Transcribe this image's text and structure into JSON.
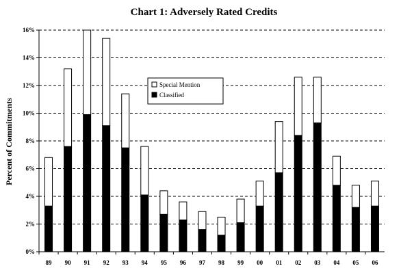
{
  "chart_data": {
    "type": "bar",
    "stacked": true,
    "title": "Chart 1: Adversely Rated Credits",
    "xlabel": "",
    "ylabel": "Percent of Commitments",
    "categories": [
      "89",
      "90",
      "91",
      "92",
      "93",
      "94",
      "95",
      "96",
      "97",
      "98",
      "99",
      "00",
      "01",
      "02",
      "03",
      "04",
      "05",
      "06"
    ],
    "series": [
      {
        "name": "Classified",
        "color": "#000000",
        "values": [
          3.3,
          7.6,
          9.9,
          9.1,
          7.5,
          4.1,
          2.7,
          2.3,
          1.6,
          1.2,
          2.1,
          3.3,
          5.7,
          8.4,
          9.3,
          4.8,
          3.2,
          3.3
        ]
      },
      {
        "name": "Special Mention",
        "color": "#ffffff",
        "values": [
          3.5,
          5.6,
          6.1,
          6.3,
          3.9,
          3.5,
          1.7,
          1.3,
          1.3,
          1.3,
          1.7,
          1.8,
          3.7,
          4.2,
          3.3,
          2.1,
          1.6,
          1.8
        ]
      }
    ],
    "ylim": [
      0,
      16
    ],
    "yticks": [
      "0%",
      "2%",
      "4%",
      "6%",
      "8%",
      "10%",
      "12%",
      "14%",
      "16%"
    ],
    "grid": true,
    "legend_position": "upper-center"
  }
}
